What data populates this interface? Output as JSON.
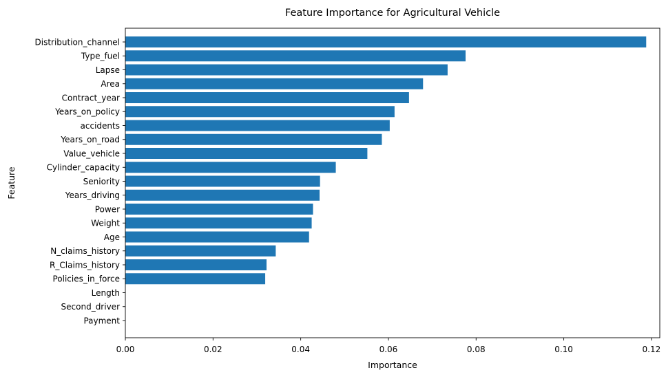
{
  "chart_data": {
    "type": "bar",
    "orientation": "horizontal",
    "title": "Feature Importance for Agricultural Vehicle",
    "xlabel": "Importance",
    "ylabel": "Feature",
    "xlim": [
      0,
      0.1219
    ],
    "xticks": [
      0.0,
      0.02,
      0.04,
      0.06,
      0.08,
      0.1,
      0.12
    ],
    "xtick_labels": [
      "0.00",
      "0.02",
      "0.04",
      "0.06",
      "0.08",
      "0.10",
      "0.12"
    ],
    "grid": false,
    "bar_color": "#1f77b4",
    "categories": [
      "Distribution_channel",
      "Type_fuel",
      "Lapse",
      "Area",
      "Contract_year",
      "Years_on_policy",
      "accidents",
      "Years_on_road",
      "Value_vehicle",
      "Cylinder_capacity",
      "Seniority",
      "Years_driving",
      "Power",
      "Weight",
      "Age",
      "N_claims_history",
      "R_Claims_history",
      "Policies_in_force",
      "Length",
      "Second_driver",
      "Payment"
    ],
    "values": [
      0.1188,
      0.0776,
      0.0735,
      0.0679,
      0.0647,
      0.0614,
      0.0603,
      0.0585,
      0.0552,
      0.048,
      0.0444,
      0.0443,
      0.0428,
      0.0425,
      0.0419,
      0.0343,
      0.0322,
      0.0319,
      0.0,
      0.0,
      0.0
    ]
  }
}
